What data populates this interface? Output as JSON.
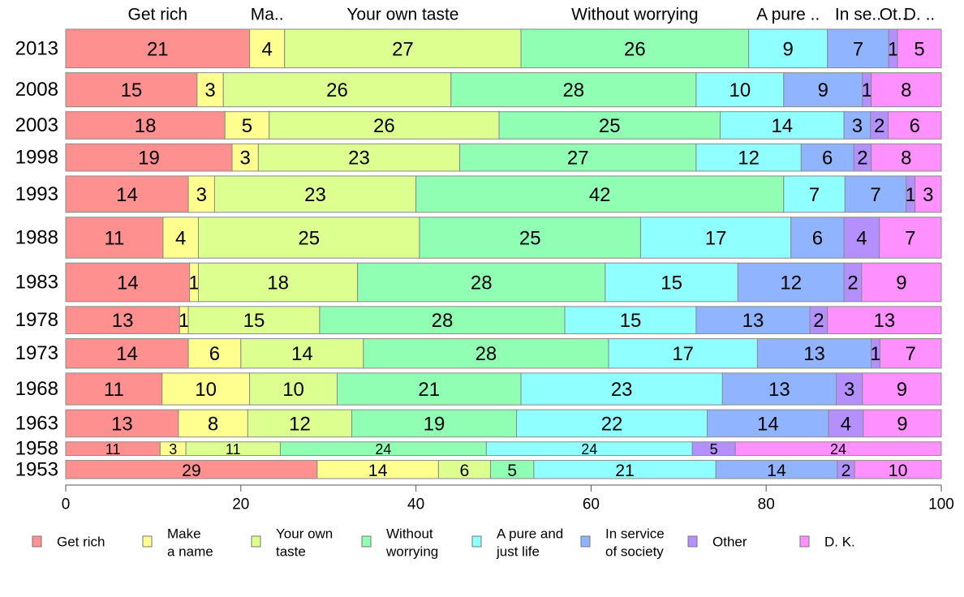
{
  "chart_data": {
    "type": "bar",
    "orientation": "horizontal",
    "stacked": true,
    "categories": [
      "2013",
      "2008",
      "2003",
      "1998",
      "1993",
      "1988",
      "1983",
      "1978",
      "1973",
      "1968",
      "1963",
      "1958",
      "1953"
    ],
    "series": [
      {
        "name": "Get rich",
        "color": "#ff9090",
        "top_label": "Get rich",
        "legend": [
          "Get rich"
        ],
        "values": [
          21,
          15,
          18,
          19,
          14,
          11,
          14,
          13,
          14,
          11,
          13,
          11,
          29
        ]
      },
      {
        "name": "Make a name",
        "color": "#ffff90",
        "top_label": "Ma..",
        "legend": [
          "Make",
          "a name"
        ],
        "values": [
          4,
          3,
          5,
          3,
          3,
          4,
          1,
          1,
          6,
          10,
          8,
          3,
          14
        ]
      },
      {
        "name": "Your own taste",
        "color": "#dcff90",
        "top_label": "Your own taste",
        "legend": [
          "Your own",
          "taste"
        ],
        "values": [
          27,
          26,
          26,
          23,
          23,
          25,
          18,
          15,
          14,
          10,
          12,
          11,
          6
        ]
      },
      {
        "name": "Without worrying",
        "color": "#90ffb4",
        "top_label": "Without worrying",
        "legend": [
          "Without",
          "worrying"
        ],
        "values": [
          26,
          28,
          25,
          27,
          42,
          25,
          28,
          28,
          28,
          21,
          19,
          24,
          5
        ]
      },
      {
        "name": "A pure and just life",
        "color": "#90ffff",
        "top_label": "A pure ..",
        "legend": [
          "A pure and",
          "just life"
        ],
        "values": [
          9,
          10,
          14,
          12,
          7,
          17,
          15,
          15,
          17,
          23,
          22,
          24,
          21
        ]
      },
      {
        "name": "In service of society",
        "color": "#90b4ff",
        "top_label": "In se..",
        "legend": [
          "In service",
          "of society"
        ],
        "values": [
          7,
          9,
          3,
          6,
          7,
          6,
          12,
          13,
          13,
          13,
          14,
          null,
          14
        ]
      },
      {
        "name": "Other",
        "color": "#b490ff",
        "top_label": "Ot..",
        "legend": [
          "Other"
        ],
        "values": [
          1,
          1,
          2,
          2,
          1,
          4,
          2,
          2,
          1,
          3,
          4,
          5,
          2
        ]
      },
      {
        "name": "D. K.",
        "color": "#ff90ff",
        "top_label": "D. ..",
        "legend": [
          "D. K."
        ],
        "values": [
          5,
          8,
          6,
          8,
          3,
          7,
          9,
          13,
          7,
          9,
          9,
          24,
          10
        ]
      }
    ],
    "xlim": [
      0,
      100
    ],
    "xticks": [
      0,
      20,
      40,
      60,
      80,
      100
    ],
    "row_weights": [
      17,
      15,
      12,
      12,
      16,
      18,
      17,
      12,
      13,
      14,
      12,
      6,
      8
    ],
    "grid": false,
    "legend_position": "bottom"
  }
}
